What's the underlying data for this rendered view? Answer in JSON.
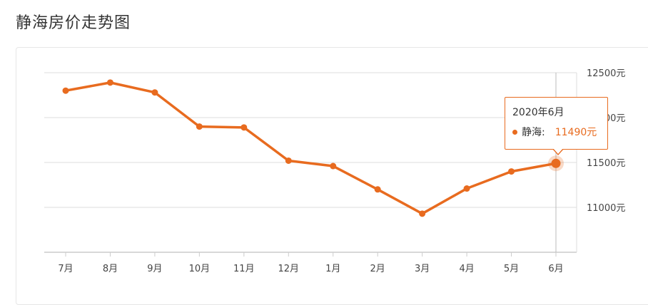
{
  "page": {
    "title": "静海房价走势图"
  },
  "tooltip": {
    "date": "2020年6月",
    "series_name": "静海:",
    "value_text": "11490元"
  },
  "colors": {
    "line": "#e86b1f",
    "grid": "#dddddd",
    "axis": "#cccccc",
    "pointer": "#bbbbbb"
  },
  "chart_data": {
    "type": "line",
    "title": "静海房价走势图",
    "categories": [
      "7月",
      "8月",
      "9月",
      "10月",
      "11月",
      "12月",
      "1月",
      "2月",
      "3月",
      "4月",
      "5月",
      "6月"
    ],
    "series": [
      {
        "name": "静海",
        "values": [
          12300,
          12390,
          12280,
          11900,
          11890,
          11520,
          11460,
          11200,
          10930,
          11210,
          11400,
          11490
        ]
      }
    ],
    "y_ticks": [
      {
        "value": 11000,
        "label": "11000元"
      },
      {
        "value": 11500,
        "label": "11500元"
      },
      {
        "value": 12000,
        "label": "12000元"
      },
      {
        "value": 12500,
        "label": "12500元"
      }
    ],
    "ylim": [
      10500,
      12500
    ],
    "grid": true,
    "y_axis_position": "right",
    "highlighted_category": "6月"
  }
}
